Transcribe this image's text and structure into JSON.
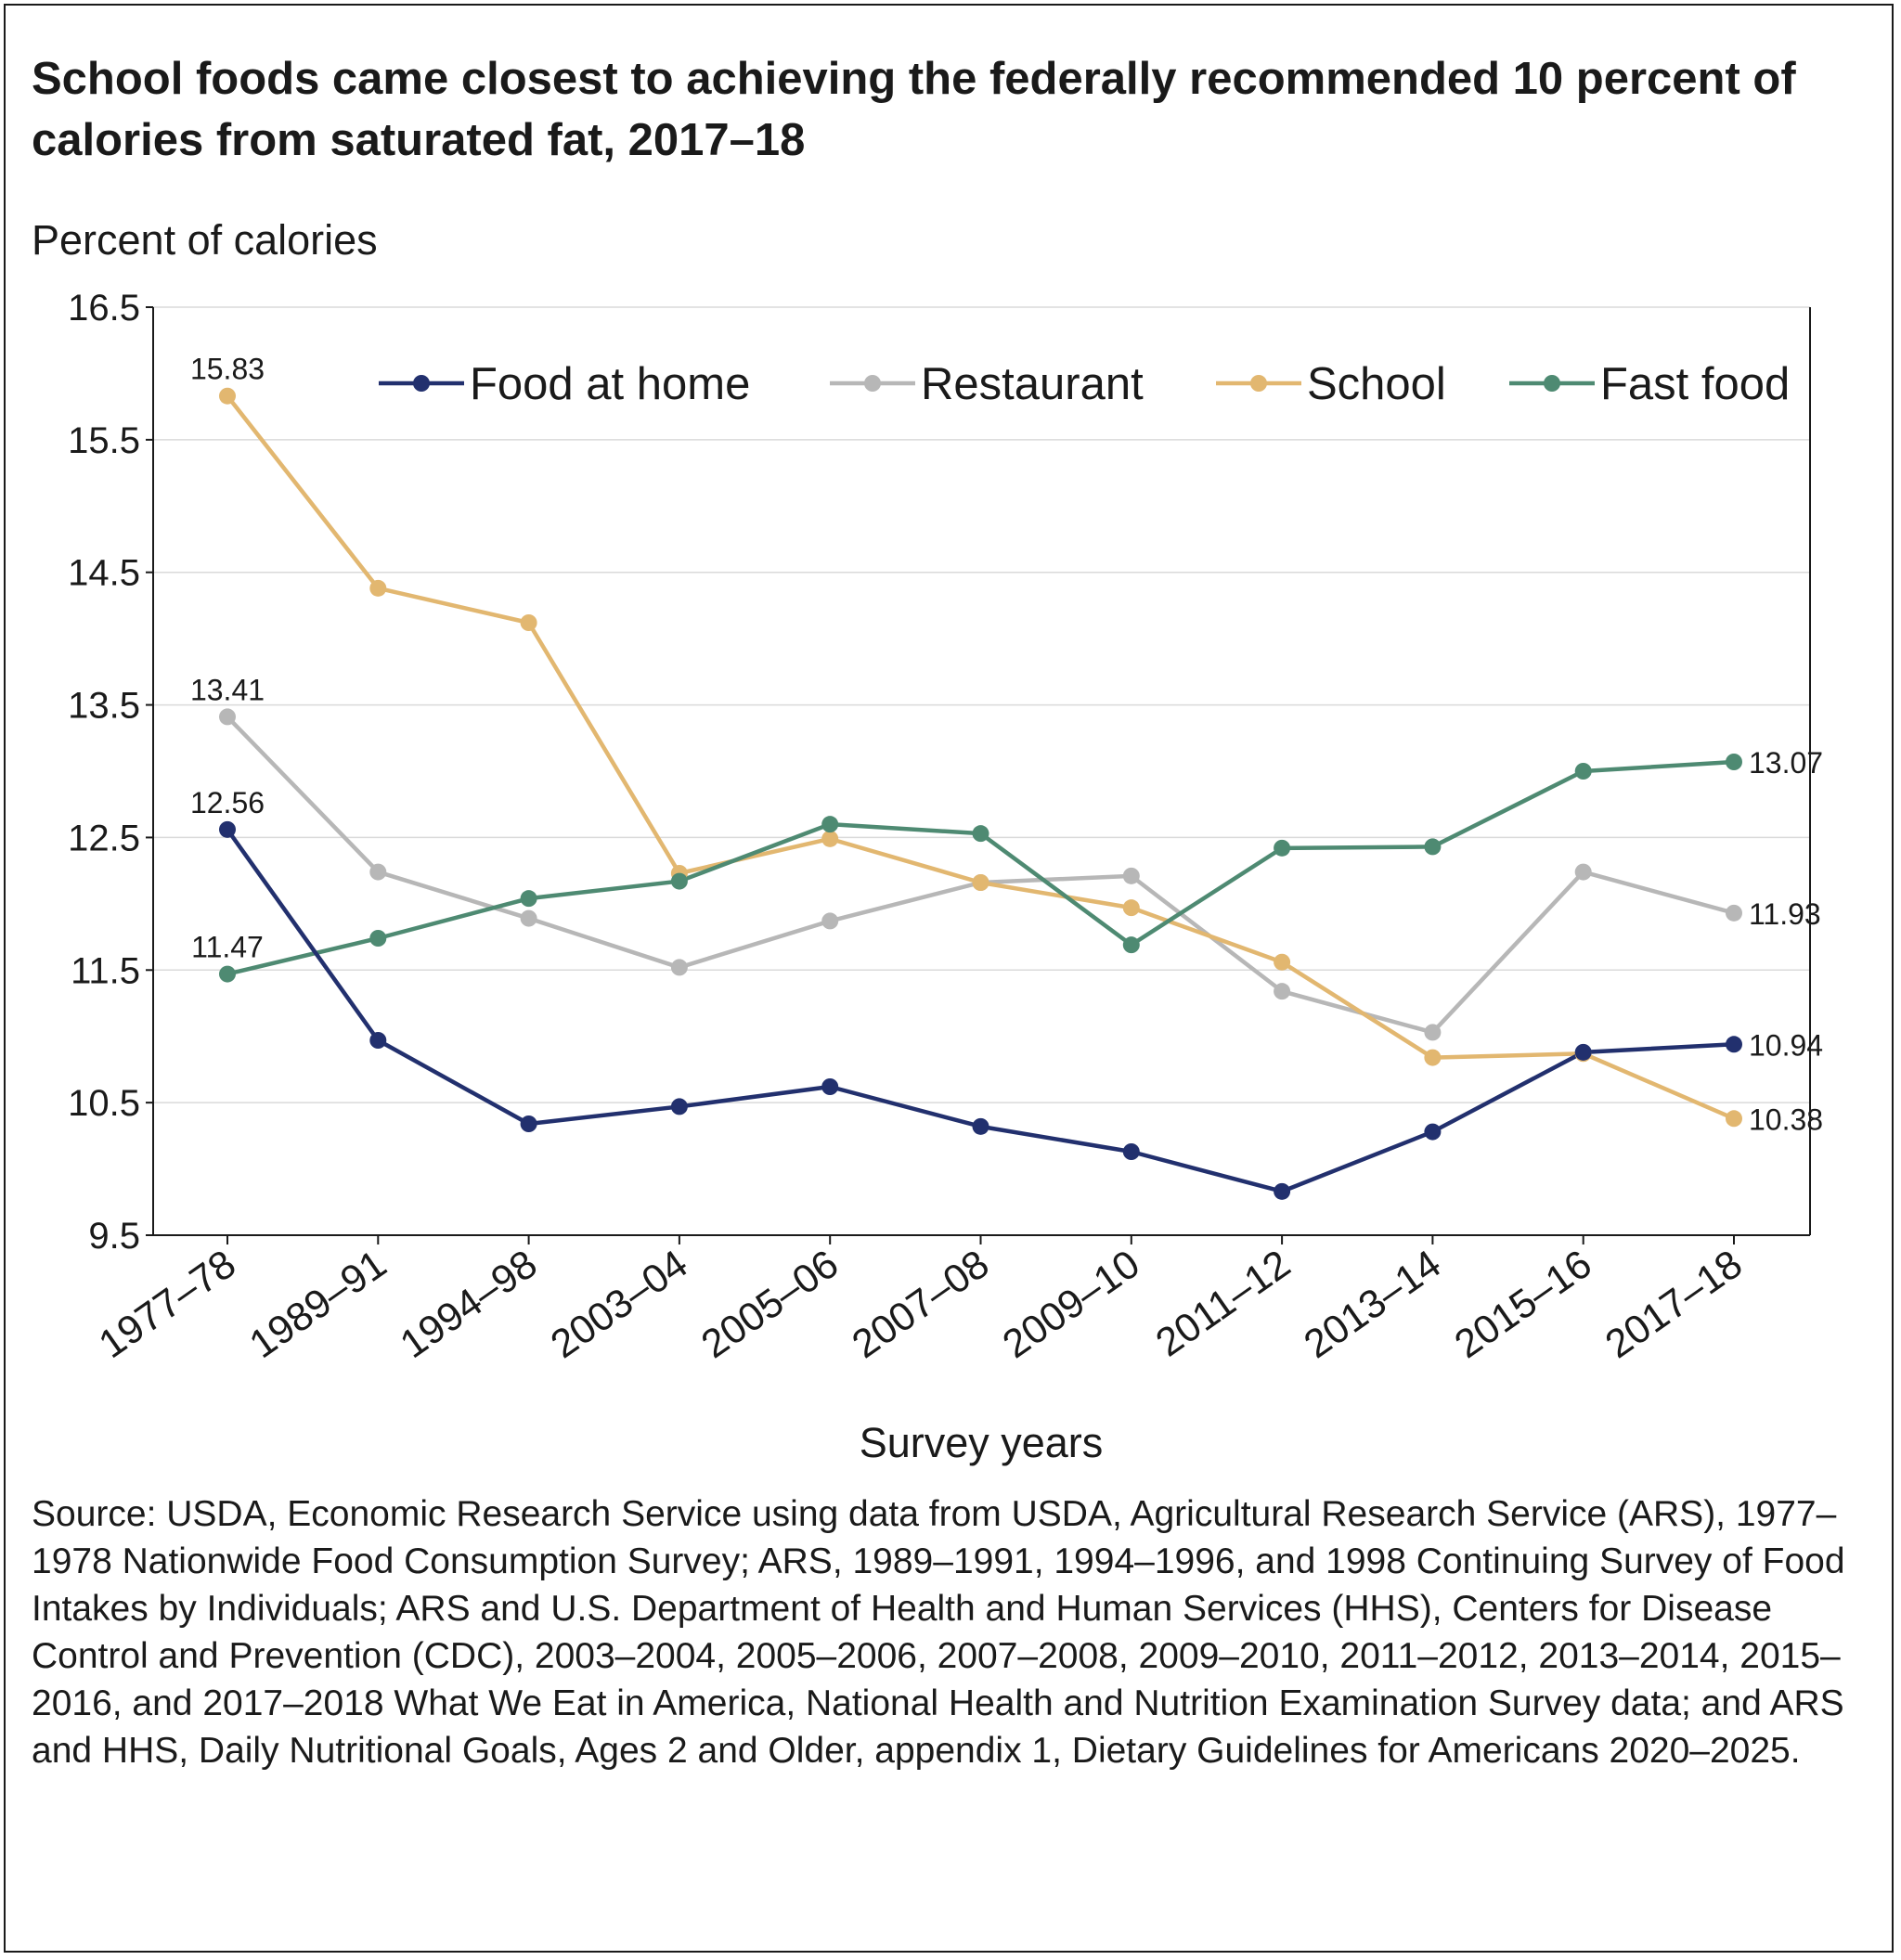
{
  "chart_data": {
    "type": "line",
    "title": "School foods came closest to achieving the federally recommended 10 percent of calories from saturated fat, 2017–18",
    "ylabel": "Percent of calories",
    "xlabel": "Survey years",
    "ylim": [
      9.5,
      16.5
    ],
    "yticks": [
      "16.5",
      "15.5",
      "14.5",
      "13.5",
      "12.5",
      "11.5",
      "10.5",
      "9.5"
    ],
    "categories": [
      "1977–78",
      "1989–91",
      "1994–98",
      "2003–04",
      "2005–06",
      "2007–08",
      "2009–10",
      "2011–12",
      "2013–14",
      "2015–16",
      "2017–18"
    ],
    "grid": "horizontal",
    "legend_position": "top-right",
    "series": [
      {
        "name": "Food at home",
        "color": "#22306e",
        "values": [
          12.56,
          10.97,
          10.34,
          10.47,
          10.62,
          10.32,
          10.13,
          9.83,
          10.28,
          10.88,
          10.94
        ],
        "labels": [
          {
            "index": 0,
            "text": "12.56",
            "side": "left"
          },
          {
            "index": 10,
            "text": "10.94",
            "side": "right"
          }
        ]
      },
      {
        "name": "Restaurant",
        "color": "#b7b7b7",
        "values": [
          13.41,
          12.24,
          11.89,
          11.52,
          11.87,
          12.16,
          12.21,
          11.34,
          11.03,
          12.24,
          11.93
        ],
        "labels": [
          {
            "index": 0,
            "text": "13.41",
            "side": "left"
          },
          {
            "index": 10,
            "text": "11.93",
            "side": "right"
          }
        ]
      },
      {
        "name": "School",
        "color": "#e2b770",
        "values": [
          15.83,
          14.38,
          14.12,
          12.23,
          12.49,
          12.16,
          11.97,
          11.56,
          10.84,
          10.87,
          10.38
        ],
        "labels": [
          {
            "index": 0,
            "text": "15.83",
            "side": "left"
          },
          {
            "index": 10,
            "text": "10.38",
            "side": "right"
          }
        ]
      },
      {
        "name": "Fast food",
        "color": "#4e8a72",
        "values": [
          11.47,
          11.74,
          12.04,
          12.17,
          12.6,
          12.53,
          11.69,
          12.42,
          12.43,
          13.0,
          13.07
        ],
        "labels": [
          {
            "index": 0,
            "text": "11.47",
            "side": "left"
          },
          {
            "index": 10,
            "text": "13.07",
            "side": "right"
          }
        ]
      }
    ]
  },
  "source": "Source: USDA, Economic Research Service using data from USDA, Agricultural Research Service (ARS), 1977–1978 Nationwide Food Consumption Survey; ARS, 1989–1991, 1994–1996, and 1998 Continuing Survey of Food Intakes by Individuals; ARS and U.S. Department of Health and Human Services (HHS), Centers for Disease Control and Prevention (CDC), 2003–2004, 2005–2006, 2007–2008, 2009–2010, 2011–2012, 2013–2014, 2015–2016, and 2017–2018 What We Eat in America, National Health and Nutrition Examination Survey data; and ARS and HHS, Daily Nutritional Goals, Ages 2 and Older, appendix 1, Dietary Guidelines for Americans 2020–2025."
}
